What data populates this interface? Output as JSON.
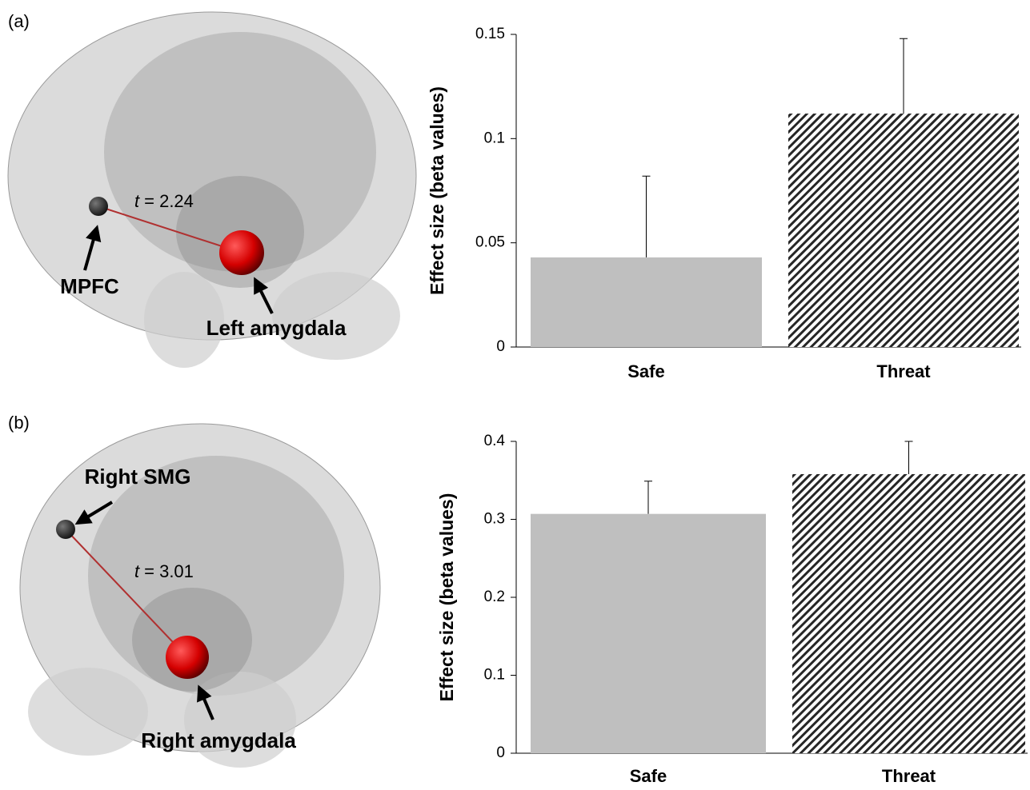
{
  "panels": [
    {
      "label": "(a)",
      "stat_symbol": "t",
      "stat_value": "= 2.24",
      "regions": [
        "MPFC",
        "Left amygdala"
      ]
    },
    {
      "label": "(b)",
      "stat_symbol": "t",
      "stat_value": "= 3.01",
      "regions": [
        "Right SMG",
        "Right amygdala"
      ]
    }
  ],
  "chart_data": [
    {
      "type": "bar",
      "ylabel": "Effect size (beta values)",
      "categories": [
        "Safe",
        "Threat"
      ],
      "values": [
        0.043,
        0.112
      ],
      "errors": [
        0.039,
        0.036
      ],
      "colors": [
        "#bfbfbf",
        "#262626"
      ],
      "fills": [
        "solid",
        "hatch"
      ],
      "ylim": [
        0,
        0.15
      ],
      "yticks": [
        0,
        0.05,
        0.1,
        0.15
      ]
    },
    {
      "type": "bar",
      "ylabel": "Effect size (beta values)",
      "categories": [
        "Safe",
        "Threat"
      ],
      "values": [
        0.307,
        0.358
      ],
      "errors": [
        0.042,
        0.042
      ],
      "colors": [
        "#bfbfbf",
        "#262626"
      ],
      "fills": [
        "solid",
        "hatch"
      ],
      "ylim": [
        0,
        0.4
      ],
      "yticks": [
        0,
        0.1,
        0.2,
        0.3,
        0.4
      ]
    }
  ]
}
